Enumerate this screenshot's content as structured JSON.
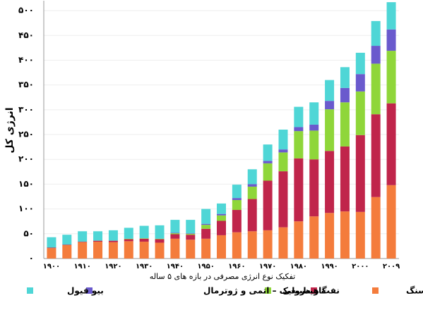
{
  "chart_data": {
    "type": "stacked-bar",
    "y_label": "انرژی کل",
    "x_label": "تفکیک نوع انرژی مصرفی در بازه های ۵ ساله",
    "categories": [
      "۱۹۰۰",
      null,
      "۱۹۱۰",
      null,
      "۱۹۲۰",
      null,
      "۱۹۳۰",
      null,
      "۱۹۴۰",
      null,
      "۱۹۵۰",
      null,
      "۱۹۶۰",
      null,
      "۱۹۷۰",
      null,
      "۱۹۸۰",
      null,
      "۱۹۹۰",
      null,
      "۲۰۰۰",
      null,
      "۲۰۰۹"
    ],
    "series": [
      {
        "name": "زغال سنگ",
        "color": "#f47c3c",
        "values": [
          21,
          27,
          33,
          34,
          33,
          35,
          34,
          32,
          40,
          38,
          40,
          47,
          53,
          55,
          57,
          63,
          75,
          85,
          92,
          95,
          94,
          124,
          148
        ]
      },
      {
        "name": "نفت",
        "color": "#c0254b",
        "values": [
          1,
          1,
          1,
          2,
          3,
          4,
          6,
          7,
          9,
          10,
          20,
          29,
          45,
          65,
          100,
          113,
          127,
          115,
          125,
          131,
          155,
          167,
          165
        ]
      },
      {
        "name": "گاز طبیعی",
        "color": "#8fd63a",
        "values": [
          0,
          0,
          0,
          0,
          0,
          1,
          1,
          1,
          2,
          2,
          8,
          11,
          20,
          25,
          35,
          38,
          55,
          58,
          84,
          89,
          88,
          102,
          106
        ]
      },
      {
        "name": "هیدرولیک – اتمی و ژوترمال",
        "color": "#6a5acd",
        "values": [
          0,
          0,
          0,
          0,
          0,
          0,
          0,
          0,
          1,
          1,
          2,
          3,
          4,
          5,
          5,
          6,
          8,
          12,
          17,
          29,
          35,
          36,
          43
        ]
      },
      {
        "name": "بیو فیول",
        "color": "#4fd6d6",
        "values": [
          21,
          20,
          21,
          19,
          21,
          22,
          25,
          27,
          26,
          27,
          30,
          21,
          27,
          30,
          33,
          40,
          41,
          45,
          42,
          42,
          43,
          50,
          55
        ]
      }
    ],
    "ylim": [
      0,
      520
    ],
    "yticks": [
      {
        "value": 0,
        "label": "۰"
      },
      {
        "value": 50,
        "label": "۵۰"
      },
      {
        "value": 100,
        "label": "۱۰۰"
      },
      {
        "value": 150,
        "label": "۱۵۰"
      },
      {
        "value": 200,
        "label": "۲۰۰"
      },
      {
        "value": 250,
        "label": "۲۵۰"
      },
      {
        "value": 300,
        "label": "۳۰۰"
      },
      {
        "value": 350,
        "label": "۳۵۰"
      },
      {
        "value": 400,
        "label": "۴۰۰"
      },
      {
        "value": 450,
        "label": "۴۵۰"
      },
      {
        "value": 500,
        "label": "۵۰۰"
      }
    ],
    "grid": true
  }
}
